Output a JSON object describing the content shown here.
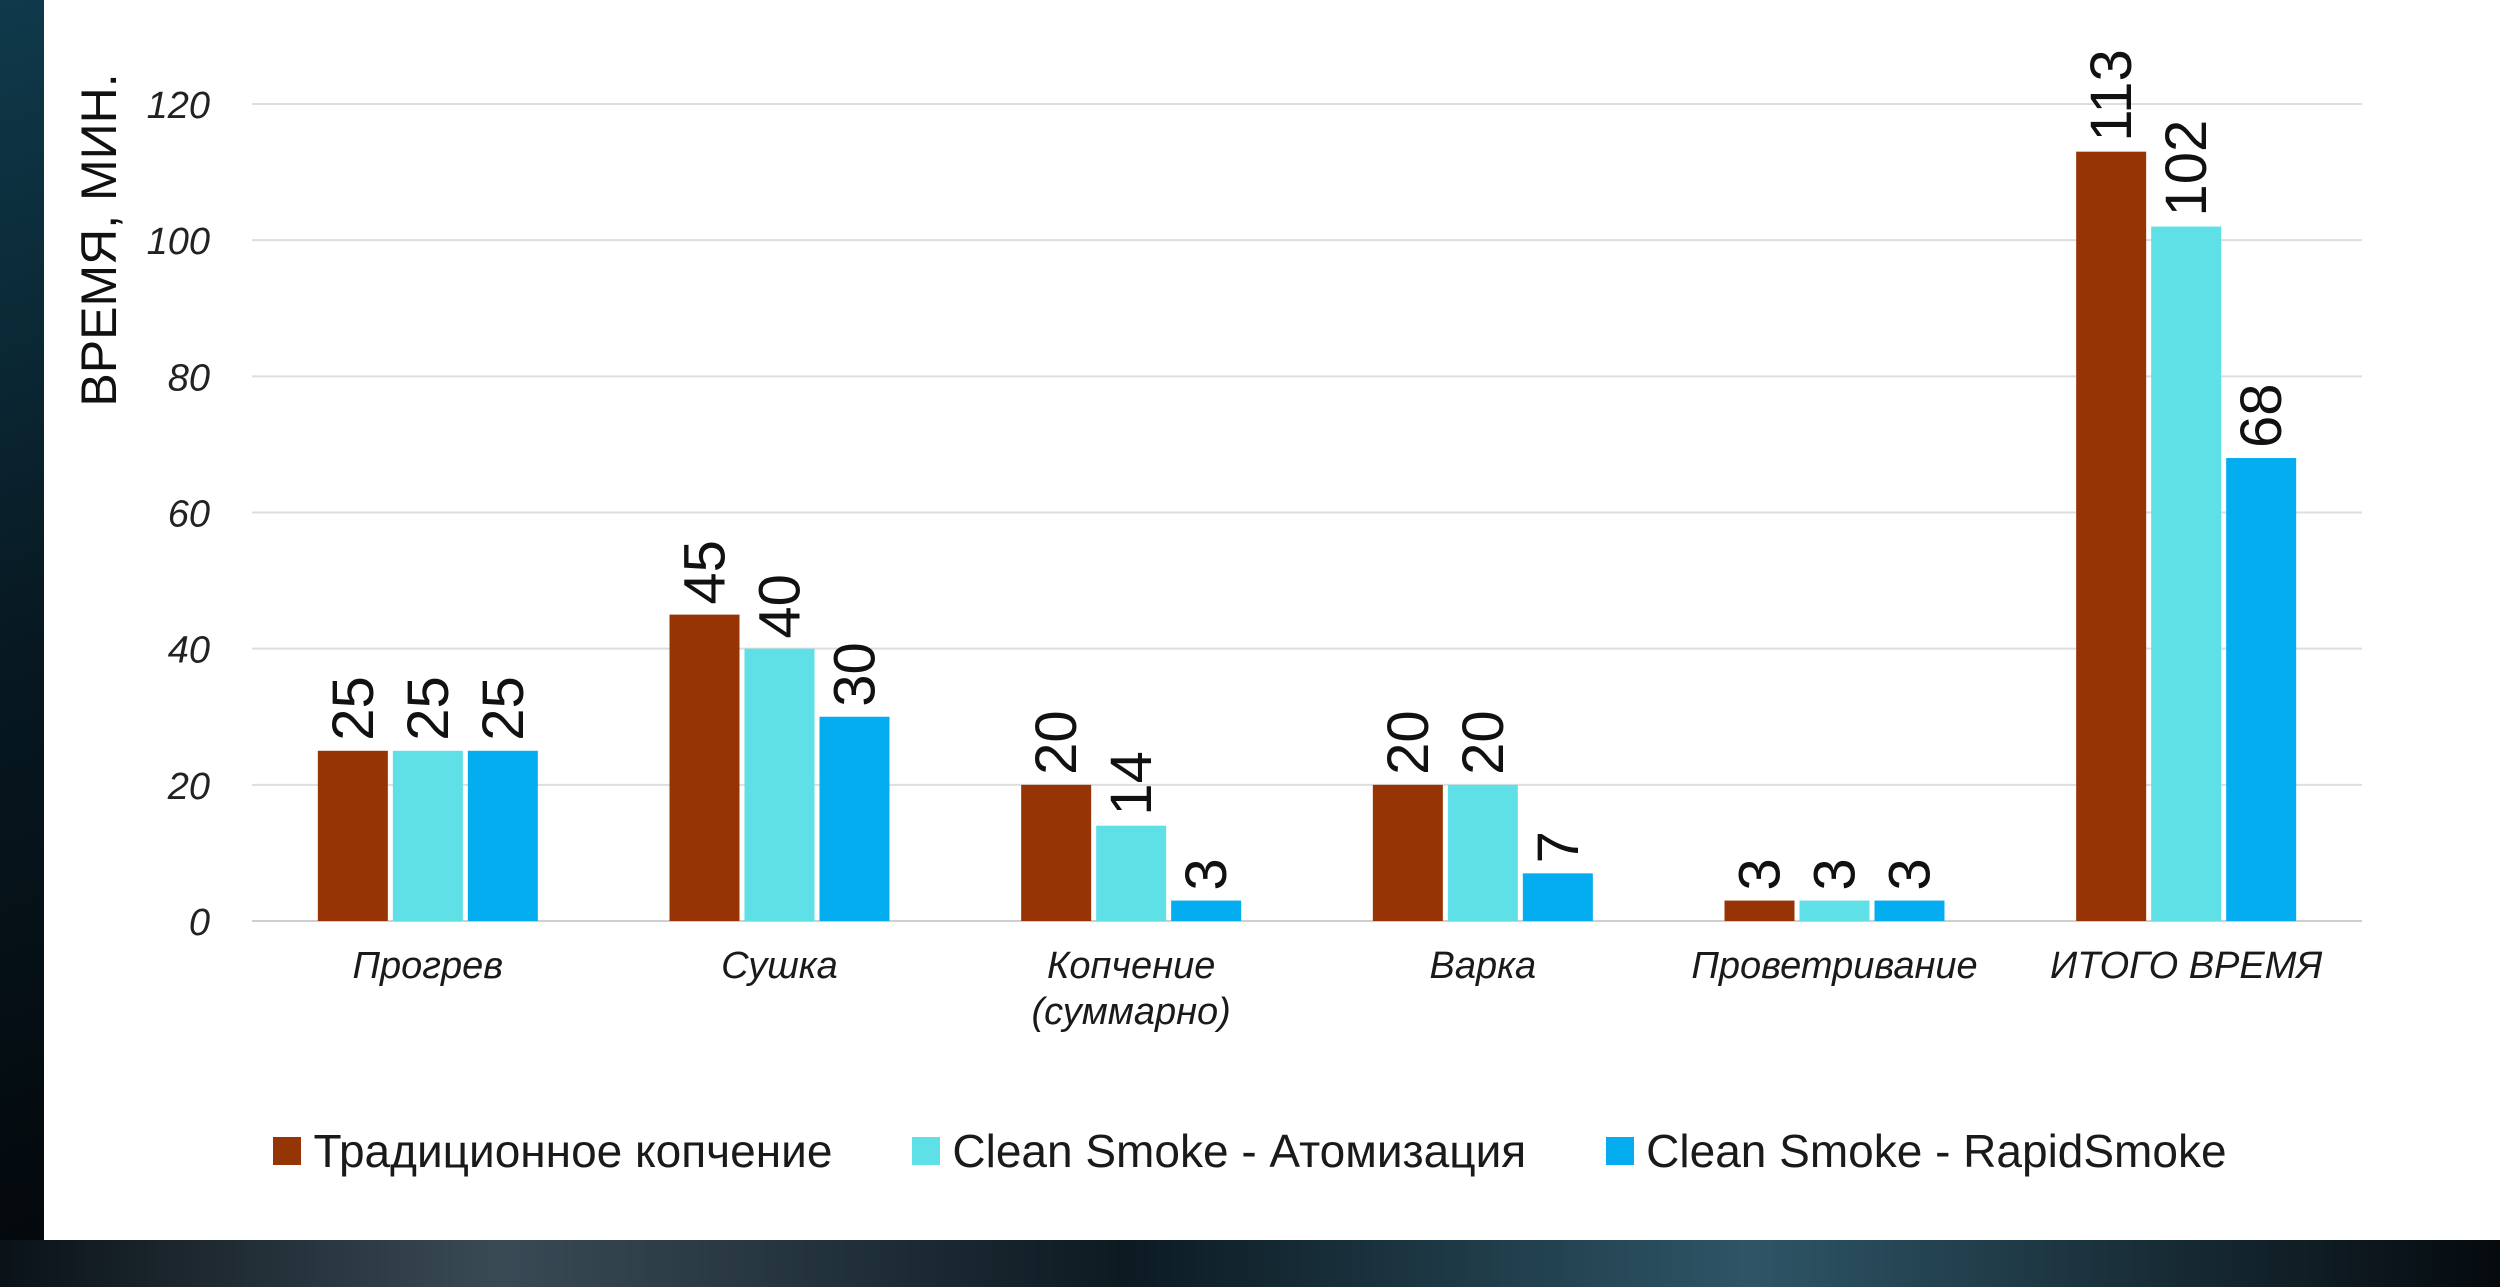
{
  "chart_data": {
    "type": "bar",
    "ylabel": "ВРЕМЯ, МИН.",
    "ylim": [
      0,
      120
    ],
    "yticks": [
      0,
      20,
      40,
      60,
      80,
      100,
      120
    ],
    "grid": true,
    "legend_position": "bottom",
    "categories": [
      [
        "Прогрев"
      ],
      [
        "Сушка"
      ],
      [
        "Копчение",
        "(суммарно)"
      ],
      [
        "Варка"
      ],
      [
        "Проветривание"
      ],
      [
        "ИТОГО ВРЕМЯ"
      ]
    ],
    "series": [
      {
        "name": "Традиционное копчение",
        "color": "#963406",
        "values": [
          25,
          45,
          20,
          20,
          3,
          113
        ]
      },
      {
        "name": "Clean Smoke - Атомизация",
        "color": "#5ee0e6",
        "values": [
          25,
          40,
          14,
          20,
          3,
          102
        ]
      },
      {
        "name": "Clean Smoke - RapidSmoke",
        "color": "#04adef",
        "values": [
          25,
          30,
          3,
          7,
          3,
          68
        ]
      }
    ]
  }
}
